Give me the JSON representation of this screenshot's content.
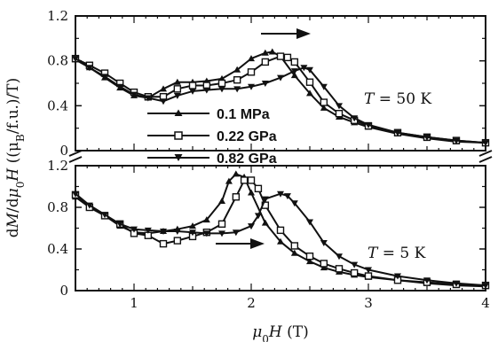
{
  "colors": {
    "ink": "#111111",
    "background": "#ffffff"
  },
  "chart_data": [
    {
      "type": "line",
      "panel": "top",
      "annotation": {
        "var": "T",
        "text": " = 50 K"
      },
      "arrow": "right",
      "xlim": [
        0.5,
        4
      ],
      "ylim": [
        0,
        1.2
      ],
      "yticks": [
        "1.2",
        "0.8",
        "0.4",
        "0"
      ],
      "xticks": [],
      "series": [
        {
          "name": "0.1 MPa",
          "marker": "triangle-up",
          "x": [
            0.5,
            0.62,
            0.75,
            0.88,
            1.0,
            1.12,
            1.25,
            1.37,
            1.5,
            1.62,
            1.75,
            1.88,
            2.0,
            2.12,
            2.18,
            2.25,
            2.37,
            2.5,
            2.62,
            2.75,
            2.88,
            3.0,
            3.25,
            3.5,
            3.75,
            4.0
          ],
          "y": [
            0.81,
            0.74,
            0.65,
            0.56,
            0.49,
            0.47,
            0.55,
            0.61,
            0.61,
            0.62,
            0.64,
            0.72,
            0.82,
            0.87,
            0.88,
            0.84,
            0.67,
            0.51,
            0.38,
            0.3,
            0.25,
            0.21,
            0.15,
            0.11,
            0.08,
            0.07
          ]
        },
        {
          "name": "0.22 GPa",
          "marker": "square-open",
          "x": [
            0.5,
            0.62,
            0.75,
            0.88,
            1.0,
            1.12,
            1.25,
            1.37,
            1.5,
            1.62,
            1.75,
            1.88,
            2.0,
            2.12,
            2.25,
            2.31,
            2.37,
            2.5,
            2.62,
            2.75,
            2.88,
            3.0,
            3.25,
            3.5,
            3.75,
            4.0
          ],
          "y": [
            0.82,
            0.76,
            0.69,
            0.6,
            0.52,
            0.48,
            0.48,
            0.55,
            0.58,
            0.58,
            0.6,
            0.63,
            0.7,
            0.79,
            0.84,
            0.83,
            0.79,
            0.61,
            0.43,
            0.33,
            0.27,
            0.22,
            0.16,
            0.12,
            0.09,
            0.07
          ]
        },
        {
          "name": "0.82 GPa",
          "marker": "triangle-down",
          "x": [
            0.5,
            0.62,
            0.75,
            0.88,
            1.0,
            1.12,
            1.25,
            1.37,
            1.5,
            1.62,
            1.75,
            1.88,
            2.0,
            2.12,
            2.25,
            2.37,
            2.45,
            2.5,
            2.62,
            2.75,
            2.88,
            3.0,
            3.25,
            3.5,
            3.75,
            4.0
          ],
          "y": [
            0.82,
            0.74,
            0.66,
            0.57,
            0.5,
            0.47,
            0.44,
            0.49,
            0.53,
            0.54,
            0.55,
            0.55,
            0.57,
            0.6,
            0.65,
            0.71,
            0.74,
            0.72,
            0.57,
            0.4,
            0.29,
            0.23,
            0.16,
            0.12,
            0.09,
            0.07
          ]
        }
      ]
    },
    {
      "type": "line",
      "panel": "bottom",
      "annotation": {
        "var": "T",
        "text": " = 5 K"
      },
      "arrow": "right",
      "xlim": [
        0.5,
        4
      ],
      "ylim": [
        0,
        1.2
      ],
      "yticks": [
        "1.2",
        "0.8",
        "0.4",
        "0"
      ],
      "xticks": [
        "1",
        "2",
        "3",
        "4"
      ],
      "series": [
        {
          "name": "0.1 MPa",
          "marker": "triangle-up",
          "x": [
            0.5,
            0.62,
            0.75,
            0.88,
            1.0,
            1.12,
            1.25,
            1.37,
            1.5,
            1.62,
            1.75,
            1.81,
            1.87,
            1.94,
            2.0,
            2.12,
            2.25,
            2.37,
            2.5,
            2.62,
            2.75,
            2.88,
            3.0,
            3.25,
            3.5,
            3.75,
            4.0
          ],
          "y": [
            0.9,
            0.8,
            0.72,
            0.62,
            0.56,
            0.55,
            0.57,
            0.59,
            0.62,
            0.68,
            0.86,
            1.05,
            1.12,
            1.09,
            0.94,
            0.65,
            0.47,
            0.36,
            0.28,
            0.22,
            0.18,
            0.15,
            0.13,
            0.1,
            0.07,
            0.05,
            0.04
          ]
        },
        {
          "name": "0.22 GPa",
          "marker": "square-open",
          "x": [
            0.5,
            0.62,
            0.75,
            0.88,
            1.0,
            1.12,
            1.25,
            1.37,
            1.5,
            1.62,
            1.75,
            1.87,
            1.94,
            2.0,
            2.06,
            2.12,
            2.25,
            2.37,
            2.5,
            2.62,
            2.75,
            2.88,
            3.0,
            3.25,
            3.5,
            3.75,
            4.0
          ],
          "y": [
            0.92,
            0.8,
            0.72,
            0.64,
            0.55,
            0.53,
            0.45,
            0.48,
            0.52,
            0.56,
            0.64,
            0.9,
            1.06,
            1.06,
            0.98,
            0.82,
            0.58,
            0.43,
            0.33,
            0.26,
            0.21,
            0.17,
            0.14,
            0.1,
            0.08,
            0.06,
            0.05
          ]
        },
        {
          "name": "0.82 GPa",
          "marker": "triangle-down",
          "x": [
            0.5,
            0.62,
            0.75,
            0.88,
            1.0,
            1.12,
            1.25,
            1.37,
            1.5,
            1.62,
            1.75,
            1.87,
            2.0,
            2.06,
            2.12,
            2.25,
            2.31,
            2.37,
            2.5,
            2.62,
            2.75,
            2.88,
            3.0,
            3.25,
            3.5,
            3.75,
            4.0
          ],
          "y": [
            0.93,
            0.82,
            0.73,
            0.64,
            0.59,
            0.58,
            0.57,
            0.57,
            0.56,
            0.55,
            0.55,
            0.56,
            0.62,
            0.72,
            0.88,
            0.93,
            0.91,
            0.84,
            0.66,
            0.46,
            0.33,
            0.25,
            0.2,
            0.14,
            0.1,
            0.07,
            0.05
          ]
        }
      ]
    }
  ],
  "axes": {
    "xlabel": {
      "mu": "μ",
      "sub": "0",
      "main": "H",
      "unit": " (T)"
    },
    "ylabel": {
      "d1": "d",
      "M": "M",
      "slash": "/d",
      "mu": "μ",
      "sub0": "0",
      "H": "H",
      "open": " ((μ",
      "subB": "B",
      "close": "/f.u.)/T)"
    }
  }
}
